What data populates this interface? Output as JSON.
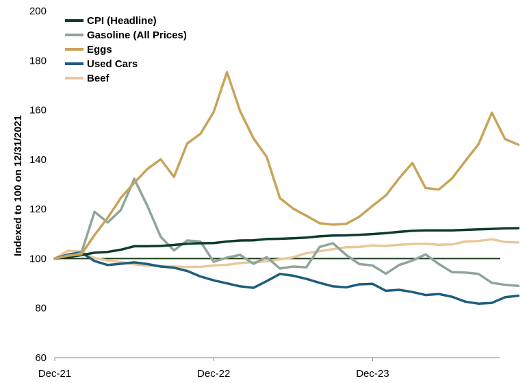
{
  "chart_data": {
    "type": "line",
    "ylabel": "Indexed to 100 on 12/31/2021",
    "ylim": [
      60,
      200
    ],
    "yticks": [
      60,
      80,
      100,
      120,
      140,
      160,
      180,
      200
    ],
    "xticks": [
      {
        "label": "Dec-21",
        "index": 0
      },
      {
        "label": "Dec-22",
        "index": 12
      },
      {
        "label": "Dec-23",
        "index": 24
      }
    ],
    "x": [
      "Dec-21",
      "Jan-22",
      "Feb-22",
      "Mar-22",
      "Apr-22",
      "May-22",
      "Jun-22",
      "Jul-22",
      "Aug-22",
      "Sep-22",
      "Oct-22",
      "Nov-22",
      "Dec-22",
      "Jan-23",
      "Feb-23",
      "Mar-23",
      "Apr-23",
      "May-23",
      "Jun-23",
      "Jul-23",
      "Aug-23",
      "Sep-23",
      "Oct-23",
      "Nov-23",
      "Dec-23",
      "Jan-24",
      "Feb-24",
      "Mar-24",
      "Apr-24",
      "May-24",
      "Jun-24",
      "Jul-24",
      "Aug-24",
      "Sep-24",
      "Oct-24",
      "Nov-24"
    ],
    "reference_line": 100,
    "legend_position": "top-left",
    "series": [
      {
        "name": "CPI (Headline)",
        "color": "#0d3b2e",
        "values": [
          100,
          100.6,
          101.4,
          102.4,
          102.7,
          103.6,
          105,
          105,
          105.1,
          105.5,
          106,
          106.2,
          106.3,
          106.9,
          107.3,
          107.4,
          107.9,
          108,
          108.2,
          108.5,
          109,
          109.3,
          109.4,
          109.6,
          109.9,
          110.3,
          110.8,
          111.2,
          111.4,
          111.4,
          111.4,
          111.6,
          111.8,
          112,
          112.2,
          112.3
        ]
      },
      {
        "name": "Gasoline (All Prices)",
        "color": "#8fa59b",
        "values": [
          100,
          100.9,
          102.2,
          118.9,
          114.6,
          119.7,
          132.2,
          121.2,
          108.8,
          103.3,
          107.3,
          106.9,
          98.7,
          100.4,
          101.5,
          97.9,
          100.6,
          96,
          96.8,
          96.5,
          104.7,
          106.2,
          101.5,
          97.8,
          97.2,
          93.9,
          97.4,
          99.2,
          101.7,
          97.8,
          94.5,
          94.4,
          93.8,
          90.2,
          89.4,
          89
        ]
      },
      {
        "name": "Eggs",
        "color": "#c8a45a",
        "values": [
          100,
          101.2,
          101.7,
          109.5,
          116.5,
          124.6,
          130.6,
          136.2,
          140.1,
          133,
          146.5,
          150.4,
          159.2,
          175.3,
          159.5,
          148.6,
          141.1,
          124.4,
          120.2,
          117.3,
          114.3,
          113.7,
          114,
          116.9,
          121.3,
          125.5,
          132.4,
          138.6,
          128.5,
          127.9,
          132.4,
          139.4,
          146.2,
          158.9,
          148.3,
          146
        ]
      },
      {
        "name": "Used Cars",
        "color": "#1d5e7f",
        "values": [
          100,
          101.6,
          102.5,
          99,
          97.4,
          97.9,
          98.5,
          97.8,
          96.8,
          96.3,
          95,
          92.8,
          91.2,
          90,
          88.8,
          88.2,
          90.9,
          93.8,
          93.1,
          91.8,
          90.2,
          88.8,
          88.4,
          89.6,
          89.8,
          87,
          87.4,
          86.5,
          85.3,
          85.7,
          84.6,
          82.6,
          81.8,
          82.1,
          84.4,
          85
        ]
      },
      {
        "name": "Beef",
        "color": "#e8c89a",
        "values": [
          100,
          103.2,
          102.8,
          100.2,
          99.2,
          98.6,
          97.7,
          97.1,
          97,
          96.8,
          96.6,
          96.7,
          97.2,
          97.5,
          98.2,
          98.6,
          98.9,
          99.7,
          100.5,
          102.2,
          103,
          103.8,
          104.6,
          104.7,
          105.3,
          105.1,
          105.6,
          105.9,
          106,
          105.6,
          105.7,
          106.9,
          107.1,
          107.8,
          106.7,
          106.5
        ]
      }
    ]
  }
}
